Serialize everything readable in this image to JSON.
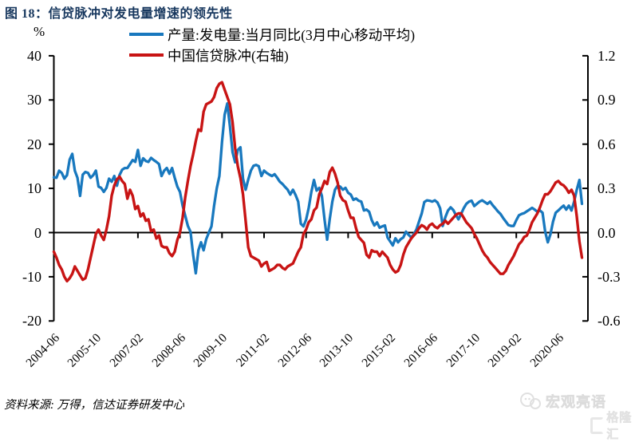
{
  "title": "图 18：信贷脉冲对发电量增速的领先性",
  "source_note": "资料来源: 万得，信达证券研发中心",
  "watermark": {
    "text": "宏观亮语",
    "logo_text": "格隆汇"
  },
  "colors": {
    "title": "#17375e",
    "axis": "#000000",
    "watermark": "#e2e2e2"
  },
  "chart_data": {
    "type": "line",
    "title": "信贷脉冲对发电量增速的领先性",
    "grid": false,
    "legend_position": "top",
    "x_start": "2004-06",
    "x_frequency": "monthly",
    "x_axis": {
      "tick_interval_months": 16,
      "ticks": [
        "2004-06",
        "2005-10",
        "2007-02",
        "2008-06",
        "2009-10",
        "2011-02",
        "2012-06",
        "2013-10",
        "2015-02",
        "2016-06",
        "2017-10",
        "2019-02",
        "2020-06"
      ]
    },
    "left_axis": {
      "label": "%",
      "range": [
        -20,
        40
      ],
      "ticks": [
        "40",
        "30",
        "20",
        "10",
        "0",
        "-10",
        "-20"
      ]
    },
    "right_axis": {
      "label": "",
      "range": [
        -0.6,
        1.2
      ],
      "ticks": [
        "1.2",
        "0.9",
        "0.6",
        "0.3",
        "0.0",
        "-0.3",
        "-0.6"
      ]
    },
    "series": [
      {
        "name": "产量:发电量:当月同比(3月中心移动平均)",
        "axis": "left",
        "unit": "%",
        "color": "#1878be",
        "start": "2004-06",
        "values": [
          12.5,
          12.4,
          14.0,
          13.5,
          12.2,
          13.0,
          16.5,
          17.8,
          14.0,
          12.4,
          8.3,
          13.1,
          13.7,
          13.5,
          12.4,
          13.0,
          14.0,
          10.4,
          10.1,
          9.2,
          10.1,
          12.2,
          11.5,
          12.8,
          10.6,
          13.0,
          14.2,
          14.6,
          14.6,
          15.5,
          16.4,
          16.0,
          18.7,
          15.1,
          16.8,
          16.2,
          16.0,
          16.9,
          16.4,
          16.0,
          15.5,
          12.8,
          14.0,
          14.6,
          13.3,
          14.6,
          12.4,
          10.4,
          9.2,
          6.1,
          3.8,
          1.5,
          0.2,
          -5.0,
          -9.2,
          -4.0,
          -2.2,
          -4.0,
          -1.5,
          0.0,
          1.4,
          6.1,
          10.0,
          12.8,
          20.5,
          26.7,
          29.2,
          24.1,
          18.2,
          15.9,
          18.7,
          19.3,
          12.2,
          9.7,
          12.0,
          14.0,
          15.1,
          15.3,
          15.0,
          12.8,
          14.0,
          13.5,
          13.1,
          12.8,
          13.2,
          12.4,
          11.5,
          11.0,
          10.3,
          9.7,
          8.6,
          9.7,
          8.5,
          7.0,
          2.0,
          1.4,
          2.9,
          5.6,
          9.2,
          11.9,
          9.5,
          10.1,
          8.3,
          3.0,
          -1.6,
          3.0,
          7.0,
          9.7,
          10.6,
          10.4,
          9.7,
          10.1,
          9.0,
          8.6,
          7.4,
          7.7,
          7.2,
          7.0,
          5.0,
          5.2,
          4.7,
          2.8,
          1.6,
          2.3,
          1.1,
          1.4,
          1.6,
          -1.1,
          -2.0,
          -2.9,
          -1.3,
          -2.2,
          -1.5,
          -1.1,
          0.2,
          -0.5,
          -1.1,
          -0.4,
          0.7,
          2.5,
          4.3,
          6.9,
          7.3,
          7.2,
          7.0,
          7.3,
          6.8,
          5.5,
          1.5,
          3.5,
          5.0,
          5.7,
          5.1,
          4.0,
          3.0,
          4.2,
          5.5,
          6.5,
          7.0,
          7.2,
          6.0,
          6.5,
          7.0,
          7.3,
          6.9,
          6.5,
          7.0,
          6.2,
          5.5,
          4.8,
          4.2,
          3.3,
          2.5,
          1.7,
          1.5,
          1.5,
          2.8,
          3.9,
          4.2,
          4.4,
          4.8,
          5.2,
          5.6,
          5.2,
          4.7,
          5.0,
          4.5,
          0.2,
          -2.2,
          -0.4,
          2.5,
          4.5,
          5.0,
          5.6,
          6.1,
          5.2,
          6.1,
          5.0,
          7.0,
          9.7,
          11.9,
          6.5
        ]
      },
      {
        "name": "中国信贷脉冲(右轴)",
        "axis": "right",
        "unit": "",
        "color": "#c81414",
        "start": "2004-06",
        "values": [
          -0.13,
          -0.17,
          -0.22,
          -0.25,
          -0.3,
          -0.33,
          -0.31,
          -0.28,
          -0.23,
          -0.26,
          -0.29,
          -0.32,
          -0.31,
          -0.25,
          -0.17,
          -0.09,
          -0.01,
          0.02,
          -0.02,
          -0.05,
          0.02,
          0.11,
          0.25,
          0.32,
          0.36,
          0.38,
          0.35,
          0.33,
          0.23,
          0.29,
          0.25,
          0.16,
          0.18,
          0.11,
          0.13,
          0.08,
          0.09,
          0.01,
          0.02,
          -0.04,
          -0.02,
          -0.09,
          -0.1,
          -0.1,
          -0.14,
          -0.16,
          -0.13,
          -0.05,
          0.0,
          0.1,
          0.24,
          0.35,
          0.45,
          0.53,
          0.62,
          0.7,
          0.69,
          0.82,
          0.87,
          0.88,
          0.89,
          0.92,
          0.98,
          1.01,
          1.02,
          0.97,
          0.92,
          0.87,
          0.75,
          0.57,
          0.45,
          0.37,
          0.26,
          0.08,
          -0.1,
          -0.16,
          -0.17,
          -0.18,
          -0.19,
          -0.23,
          -0.21,
          -0.2,
          -0.26,
          -0.25,
          -0.24,
          -0.22,
          -0.22,
          -0.24,
          -0.25,
          -0.23,
          -0.22,
          -0.21,
          -0.17,
          -0.13,
          -0.1,
          -0.01,
          0.02,
          0.07,
          0.09,
          0.15,
          0.17,
          0.26,
          0.3,
          0.35,
          0.33,
          0.41,
          0.44,
          0.4,
          0.34,
          0.25,
          0.22,
          0.21,
          0.15,
          0.1,
          0.1,
          0.03,
          -0.03,
          -0.05,
          -0.07,
          -0.15,
          -0.17,
          -0.12,
          -0.13,
          -0.13,
          -0.16,
          -0.13,
          -0.15,
          -0.17,
          -0.22,
          -0.25,
          -0.27,
          -0.26,
          -0.22,
          -0.15,
          -0.1,
          -0.07,
          -0.04,
          -0.02,
          0.0,
          0.03,
          0.05,
          0.04,
          0.02,
          0.05,
          0.06,
          0.04,
          0.03,
          0.05,
          0.06,
          0.08,
          0.06,
          0.08,
          0.1,
          0.12,
          0.13,
          0.13,
          0.1,
          0.07,
          0.05,
          0.03,
          -0.01,
          -0.04,
          -0.08,
          -0.12,
          -0.15,
          -0.17,
          -0.2,
          -0.22,
          -0.24,
          -0.26,
          -0.28,
          -0.28,
          -0.26,
          -0.22,
          -0.19,
          -0.16,
          -0.12,
          -0.08,
          -0.06,
          -0.03,
          -0.02,
          0.02,
          0.07,
          0.1,
          0.13,
          0.17,
          0.22,
          0.26,
          0.26,
          0.28,
          0.31,
          0.34,
          0.35,
          0.33,
          0.32,
          0.3,
          0.27,
          0.29,
          0.25,
          0.11,
          -0.06,
          -0.17
        ]
      }
    ]
  }
}
